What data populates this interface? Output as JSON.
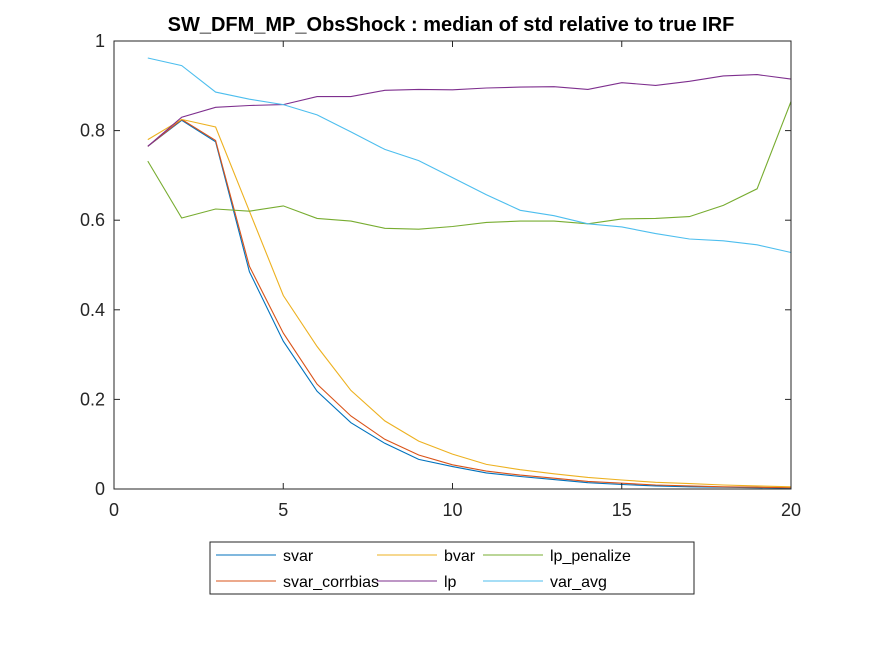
{
  "chart_data": {
    "type": "line",
    "title": "SW_DFM_MP_ObsShock : median of std relative to true IRF",
    "xlabel": "",
    "ylabel": "",
    "xlim": [
      0,
      20
    ],
    "ylim": [
      0,
      1
    ],
    "xticks": [
      0,
      5,
      10,
      15,
      20
    ],
    "yticks": [
      0,
      0.2,
      0.4,
      0.6,
      0.8,
      1
    ],
    "xtick_labels": [
      "0",
      "5",
      "10",
      "15",
      "20"
    ],
    "ytick_labels": [
      "0",
      "0.2",
      "0.4",
      "0.6",
      "0.8",
      "1"
    ],
    "grid": false,
    "legend_position": "bottom-outside",
    "x": [
      1,
      2,
      3,
      4,
      5,
      6,
      7,
      8,
      9,
      10,
      11,
      12,
      13,
      14,
      15,
      16,
      17,
      18,
      19,
      20
    ],
    "series": [
      {
        "name": "svar",
        "color": "#0072BD",
        "values": [
          0.765,
          0.823,
          0.775,
          0.485,
          0.33,
          0.218,
          0.148,
          0.102,
          0.066,
          0.05,
          0.036,
          0.028,
          0.021,
          0.014,
          0.01,
          0.007,
          0.005,
          0.004,
          0.003,
          0.002
        ]
      },
      {
        "name": "svar_corrbias",
        "color": "#D95319",
        "values": [
          0.765,
          0.825,
          0.778,
          0.497,
          0.348,
          0.234,
          0.163,
          0.111,
          0.076,
          0.054,
          0.04,
          0.031,
          0.024,
          0.017,
          0.013,
          0.009,
          0.007,
          0.005,
          0.004,
          0.003
        ]
      },
      {
        "name": "bvar",
        "color": "#EDB120",
        "values": [
          0.78,
          0.825,
          0.808,
          0.62,
          0.432,
          0.318,
          0.22,
          0.152,
          0.107,
          0.078,
          0.055,
          0.043,
          0.034,
          0.026,
          0.02,
          0.015,
          0.012,
          0.009,
          0.007,
          0.005
        ]
      },
      {
        "name": "lp",
        "color": "#7E2F8E",
        "values": [
          0.765,
          0.83,
          0.852,
          0.856,
          0.858,
          0.876,
          0.876,
          0.89,
          0.892,
          0.891,
          0.895,
          0.897,
          0.898,
          0.892,
          0.907,
          0.901,
          0.91,
          0.922,
          0.925,
          0.915
        ]
      },
      {
        "name": "lp_penalize",
        "color": "#77AC30",
        "values": [
          0.732,
          0.605,
          0.625,
          0.62,
          0.632,
          0.604,
          0.598,
          0.582,
          0.58,
          0.586,
          0.595,
          0.598,
          0.598,
          0.592,
          0.603,
          0.604,
          0.608,
          0.633,
          0.67,
          0.865
        ]
      },
      {
        "name": "var_avg",
        "color": "#4DBEEE",
        "values": [
          0.962,
          0.945,
          0.886,
          0.87,
          0.858,
          0.835,
          0.797,
          0.758,
          0.733,
          0.695,
          0.657,
          0.622,
          0.61,
          0.592,
          0.585,
          0.57,
          0.558,
          0.554,
          0.545,
          0.528
        ]
      }
    ],
    "legend_layout": [
      [
        "svar",
        "bvar",
        "lp_penalize"
      ],
      [
        "svar_corrbias",
        "lp",
        "var_avg"
      ]
    ]
  }
}
